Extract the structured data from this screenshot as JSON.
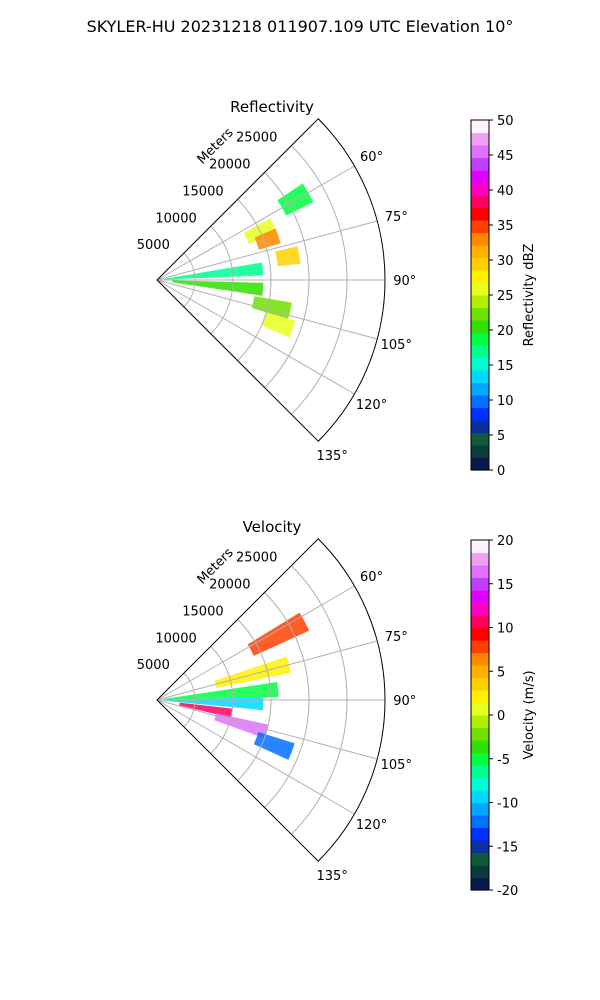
{
  "suptitle": "SKYLER-HU  20231218  011907.109 UTC Elevation 10°",
  "chart_data": [
    {
      "type": "heatmap",
      "subtype": "polar-sector-ppi",
      "title": "Reflectivity",
      "radial_axis_label": "Meters",
      "radial_ticks": [
        5000,
        10000,
        15000,
        20000,
        25000
      ],
      "rlim": [
        0,
        30000
      ],
      "azimuth_range_deg": [
        45,
        135
      ],
      "azimuth_ticks": [
        "60°",
        "75°",
        "90°",
        "105°",
        "120°",
        "135°"
      ],
      "grid": true,
      "colorbar": {
        "label": "Reflectivity dBZ",
        "range": [
          0,
          50
        ],
        "ticks": [
          0,
          5,
          10,
          15,
          20,
          25,
          30,
          35,
          40,
          45,
          50
        ],
        "colors": [
          "#081a4a",
          "#0a3d3a",
          "#0e5a3a",
          "#0b2ea0",
          "#0030ff",
          "#0070ff",
          "#00a8ff",
          "#00d8ff",
          "#00ffd0",
          "#00ff90",
          "#00ff40",
          "#30e000",
          "#70e000",
          "#b0f000",
          "#e8ff20",
          "#fff000",
          "#ffd000",
          "#ffb000",
          "#ff8800",
          "#ff4000",
          "#ff0000",
          "#ff0060",
          "#ff00c0",
          "#e000ff",
          "#c040ff",
          "#e070ff",
          "#f0a0f0",
          "#fff0ff"
        ]
      },
      "echoes": [
        {
          "az": 60,
          "r_km": [
            19,
            23
          ],
          "value": 18
        },
        {
          "az": 65,
          "r_km": [
            13,
            17
          ],
          "value": 25
        },
        {
          "az": 70,
          "r_km": [
            14,
            17
          ],
          "value": 33
        },
        {
          "az": 80,
          "r_km": [
            16,
            19
          ],
          "value": 30
        },
        {
          "az": 84,
          "r_km": [
            1,
            14
          ],
          "value": 17
        },
        {
          "az": 95,
          "r_km": [
            2,
            14
          ],
          "value": 20
        },
        {
          "az": 103,
          "r_km": [
            13,
            18
          ],
          "value": 23
        },
        {
          "az": 110,
          "r_km": [
            15,
            19
          ],
          "value": 25
        }
      ]
    },
    {
      "type": "heatmap",
      "subtype": "polar-sector-ppi",
      "title": "Velocity",
      "radial_axis_label": "Meters",
      "radial_ticks": [
        5000,
        10000,
        15000,
        20000,
        25000
      ],
      "rlim": [
        0,
        30000
      ],
      "azimuth_range_deg": [
        45,
        135
      ],
      "azimuth_ticks": [
        "60°",
        "75°",
        "90°",
        "105°",
        "120°",
        "135°"
      ],
      "grid": true,
      "colorbar": {
        "label": "Velocity (m/s)",
        "range": [
          -20,
          20
        ],
        "ticks": [
          -20,
          -15,
          -10,
          -5,
          0,
          5,
          10,
          15,
          20
        ],
        "colors": [
          "#081a4a",
          "#0a3d3a",
          "#0e5a3a",
          "#0b2ea0",
          "#0030ff",
          "#0070ff",
          "#00a8ff",
          "#00d8ff",
          "#00ffd0",
          "#00ff90",
          "#00ff40",
          "#30e000",
          "#70e000",
          "#b0f000",
          "#e8ff20",
          "#fff000",
          "#ffd000",
          "#ffb000",
          "#ff8800",
          "#ff4000",
          "#ff0000",
          "#ff0060",
          "#ff00c0",
          "#e000ff",
          "#c040ff",
          "#e070ff",
          "#f0a0f0",
          "#fff0ff"
        ]
      },
      "echoes": [
        {
          "az": 62,
          "r_km": [
            14,
            22
          ],
          "value": 8
        },
        {
          "az": 75,
          "r_km": [
            8,
            18
          ],
          "value": 2
        },
        {
          "az": 85,
          "r_km": [
            1,
            16
          ],
          "value": -5
        },
        {
          "az": 92,
          "r_km": [
            1,
            14
          ],
          "value": -10
        },
        {
          "az": 100,
          "r_km": [
            3,
            10
          ],
          "value": 11
        },
        {
          "az": 106,
          "r_km": [
            8,
            15
          ],
          "value": 16
        },
        {
          "az": 111,
          "r_km": [
            14,
            19
          ],
          "value": -12
        }
      ]
    }
  ]
}
